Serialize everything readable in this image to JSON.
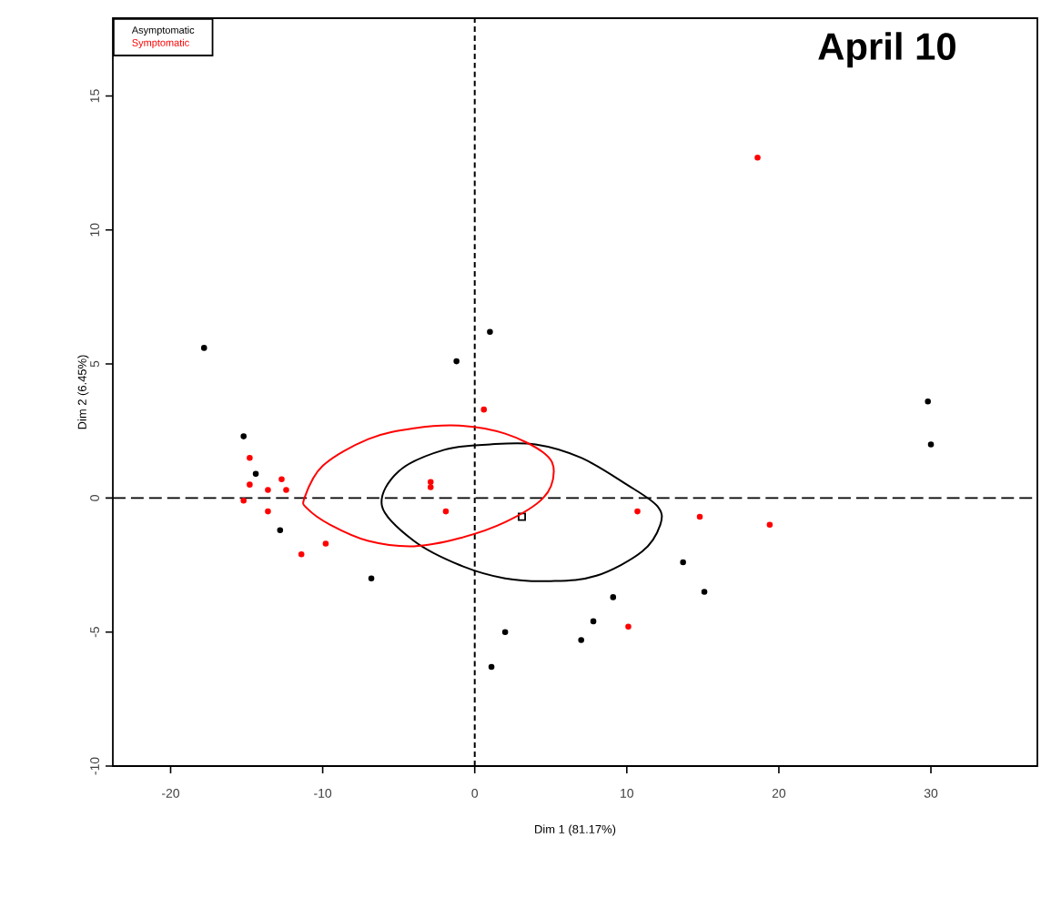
{
  "chart_data": {
    "type": "scatter",
    "title": "April 10",
    "xlabel": "Dim 1 (81.17%)",
    "ylabel": "Dim 2 (6.45%)",
    "xlim": [
      -23.8,
      37
    ],
    "ylim": [
      -10,
      17.9
    ],
    "xticks": [
      -20,
      -10,
      0,
      10,
      20,
      30
    ],
    "yticks": [
      -10,
      -5,
      0,
      5,
      10,
      15
    ],
    "grid": false,
    "legend": "top left",
    "marker": "circle",
    "ref_lines": [
      {
        "axis": "x",
        "value": 0,
        "line_style": "dotted",
        "color": "#000000"
      },
      {
        "axis": "y",
        "value": 0,
        "line_style": "dashed",
        "color": "#000000"
      }
    ],
    "series": [
      {
        "name": "Asymptomatic",
        "color": "#000000",
        "x": [
          -17.8,
          -1.2,
          1.0,
          -15.2,
          -14.4,
          -12.8,
          -6.8,
          29.8,
          30.0,
          13.7,
          15.1,
          9.1,
          7.8,
          7.0,
          2.0,
          1.1
        ],
        "values": [
          5.6,
          5.1,
          6.2,
          2.3,
          0.9,
          -1.2,
          -3.0,
          3.6,
          2.0,
          -2.4,
          -3.5,
          -3.7,
          -4.6,
          -5.3,
          -5.0,
          -6.3
        ]
      },
      {
        "name": "Symptomatic",
        "color": "#ff0000",
        "x": [
          18.6,
          0.6,
          10.7,
          14.8,
          19.4,
          10.1,
          -14.8,
          -14.8,
          -15.2,
          -13.6,
          -13.6,
          -12.7,
          -12.4,
          -11.4,
          -9.8,
          -2.9,
          -2.9,
          -1.9
        ],
        "values": [
          12.7,
          3.3,
          -0.5,
          -0.7,
          -1.0,
          -4.8,
          1.5,
          0.5,
          -0.1,
          0.3,
          -0.5,
          0.7,
          0.3,
          -2.1,
          -1.7,
          0.6,
          0.4,
          -0.5
        ]
      },
      {
        "color": "#000000",
        "marker": "square",
        "x": [
          3.1
        ],
        "values": [
          -0.7
        ]
      }
    ]
  }
}
